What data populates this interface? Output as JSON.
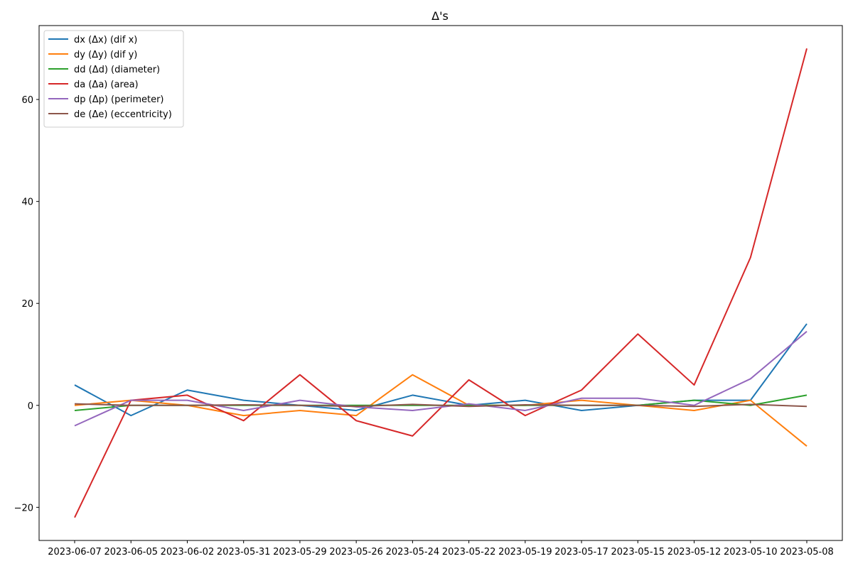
{
  "chart_data": {
    "type": "line",
    "title": "Δ's",
    "xlabel": "",
    "ylabel": "",
    "ylim": [
      -26.5,
      74.5
    ],
    "yticks": [
      -20,
      0,
      20,
      40,
      60
    ],
    "grid": false,
    "legend_position": "top-left",
    "categories": [
      "2023-06-07",
      "2023-06-05",
      "2023-06-02",
      "2023-05-31",
      "2023-05-29",
      "2023-05-26",
      "2023-05-24",
      "2023-05-22",
      "2023-05-19",
      "2023-05-17",
      "2023-05-15",
      "2023-05-12",
      "2023-05-10",
      "2023-05-08"
    ],
    "series": [
      {
        "name": "dx (Δx) (dif x)",
        "color": "#1f77b4",
        "values": [
          4,
          -2,
          3,
          1,
          0,
          -1,
          2,
          0,
          1,
          -1,
          0,
          1,
          1,
          16
        ]
      },
      {
        "name": "dy (Δy) (dif y)",
        "color": "#ff7f0e",
        "values": [
          0,
          1,
          0,
          -2,
          -1,
          -2,
          6,
          0,
          0,
          1,
          0,
          -1,
          1,
          -8
        ]
      },
      {
        "name": "dd (Δd) (diameter)",
        "color": "#2ca02c",
        "values": [
          -1,
          0,
          0,
          0,
          0,
          0,
          0,
          0,
          0,
          0,
          0,
          1,
          0,
          2
        ]
      },
      {
        "name": "da (Δa) (area)",
        "color": "#d62728",
        "values": [
          -22,
          1,
          2,
          -3,
          6,
          -3,
          -6,
          5,
          -2,
          3,
          14,
          4,
          29,
          70
        ]
      },
      {
        "name": "dp (Δp) (perimeter)",
        "color": "#9467bd",
        "values": [
          -4,
          1,
          1,
          -1,
          1,
          -0.3,
          -1,
          0.3,
          -1,
          1.4,
          1.4,
          0,
          5.2,
          14.5
        ]
      },
      {
        "name": "de (Δe) (eccentricity)",
        "color": "#8c564b",
        "values": [
          0.3,
          0,
          0,
          0.1,
          0,
          -0.2,
          0.2,
          -0.2,
          0.1,
          0,
          0,
          -0.2,
          0.2,
          -0.2
        ]
      }
    ]
  }
}
